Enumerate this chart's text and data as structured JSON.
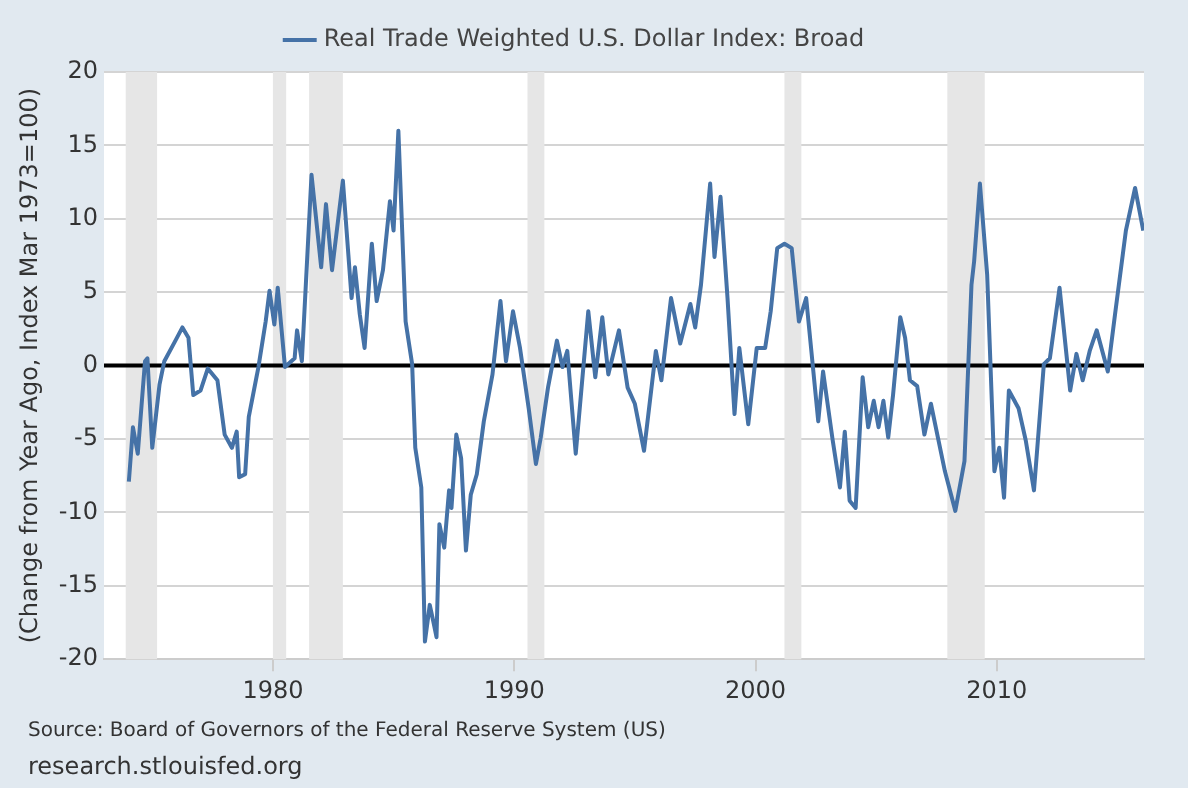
{
  "chart_data": {
    "type": "line",
    "ylabel": "(Change from Year Ago, Index Mar 1973=100)",
    "x": [
      1974.03,
      1974.2,
      1974.4,
      1974.7,
      1974.8,
      1975.0,
      1975.3,
      1975.5,
      1975.96,
      1976.25,
      1976.5,
      1976.7,
      1977.0,
      1977.3,
      1977.7,
      1978.0,
      1978.3,
      1978.5,
      1978.6,
      1978.85,
      1979.0,
      1979.4,
      1979.7,
      1979.86,
      1980.06,
      1980.2,
      1980.5,
      1980.9,
      1981.0,
      1981.2,
      1981.6,
      1982.0,
      1982.2,
      1982.45,
      1982.9,
      1983.26,
      1983.4,
      1983.6,
      1983.8,
      1984.1,
      1984.3,
      1984.56,
      1984.85,
      1985.0,
      1985.2,
      1985.5,
      1985.77,
      1985.9,
      1986.15,
      1986.3,
      1986.5,
      1986.67,
      1986.78,
      1986.9,
      1987.1,
      1987.3,
      1987.4,
      1987.6,
      1987.8,
      1988.0,
      1988.2,
      1988.45,
      1988.74,
      1989.1,
      1989.43,
      1989.66,
      1989.95,
      1990.24,
      1990.6,
      1990.9,
      1991.1,
      1991.4,
      1991.77,
      1992.0,
      1992.2,
      1992.55,
      1993.07,
      1993.36,
      1993.65,
      1993.9,
      1994.34,
      1994.7,
      1995.0,
      1995.38,
      1995.87,
      1996.1,
      1996.5,
      1996.88,
      1997.3,
      1997.5,
      1997.74,
      1998.12,
      1998.3,
      1998.55,
      1998.84,
      1999.13,
      1999.33,
      1999.7,
      2000.05,
      2000.4,
      2000.63,
      2000.9,
      2001.2,
      2001.5,
      2001.8,
      2002.1,
      2002.6,
      2002.8,
      2003.2,
      2003.5,
      2003.7,
      2003.9,
      2004.15,
      2004.44,
      2004.67,
      2004.9,
      2005.1,
      2005.3,
      2005.5,
      2005.7,
      2006.0,
      2006.2,
      2006.4,
      2006.7,
      2007.0,
      2007.27,
      2007.56,
      2007.85,
      2008.28,
      2008.66,
      2008.95,
      2009.06,
      2009.3,
      2009.6,
      2009.9,
      2010.1,
      2010.3,
      2010.5,
      2010.9,
      2011.2,
      2011.54,
      2011.95,
      2012.2,
      2012.6,
      2013.04,
      2013.3,
      2013.56,
      2013.85,
      2014.14,
      2014.6,
      2014.9,
      2015.35,
      2015.73,
      2016.07
    ],
    "series": [
      {
        "name": "Real Trade Weighted U.S. Dollar Index: Broad",
        "color": "#4572a7",
        "values": [
          -7.9,
          -4.2,
          -6.0,
          0.3,
          0.5,
          -5.6,
          -1.3,
          0.3,
          1.7,
          2.6,
          1.9,
          -2.0,
          -1.7,
          -0.2,
          -1.0,
          -4.7,
          -5.6,
          -4.5,
          -7.6,
          -7.4,
          -3.5,
          -0.1,
          3.0,
          5.1,
          2.8,
          5.3,
          -0.1,
          0.5,
          2.4,
          0.3,
          13.0,
          6.7,
          11.0,
          6.5,
          12.6,
          4.6,
          6.7,
          3.5,
          1.2,
          8.3,
          4.4,
          6.5,
          11.2,
          9.2,
          16.0,
          3.0,
          0.1,
          -5.6,
          -8.3,
          -18.8,
          -16.3,
          -17.6,
          -18.5,
          -10.8,
          -12.4,
          -8.5,
          -9.7,
          -4.7,
          -6.3,
          -12.6,
          -8.8,
          -7.4,
          -3.8,
          -0.6,
          4.4,
          0.3,
          3.7,
          1.2,
          -2.9,
          -6.7,
          -4.9,
          -1.5,
          1.7,
          -0.1,
          1.0,
          -6.0,
          3.7,
          -0.8,
          3.3,
          -0.6,
          2.4,
          -1.5,
          -2.6,
          -5.8,
          1.0,
          -1.0,
          4.6,
          1.5,
          4.2,
          2.6,
          5.5,
          12.4,
          7.4,
          11.5,
          4.6,
          -3.3,
          1.2,
          -4.0,
          1.2,
          1.2,
          3.7,
          8.0,
          8.3,
          8.0,
          3.0,
          4.6,
          -3.8,
          -0.4,
          -5.1,
          -8.3,
          -4.5,
          -9.2,
          -9.7,
          -0.8,
          -4.2,
          -2.4,
          -4.2,
          -2.4,
          -4.9,
          -2.0,
          3.3,
          1.9,
          -1.0,
          -1.4,
          -4.7,
          -2.6,
          -4.9,
          -7.2,
          -9.9,
          -6.5,
          5.5,
          7.1,
          12.4,
          6.2,
          -7.2,
          -5.6,
          -9.0,
          -1.7,
          -2.9,
          -5.1,
          -8.5,
          0.1,
          0.5,
          5.3,
          -1.7,
          0.8,
          -1.0,
          1.0,
          2.4,
          -0.4,
          3.5,
          9.2,
          12.1,
          9.2
        ]
      }
    ],
    "xlim": [
      1973.0,
      2016.1
    ],
    "xticks": [
      1980,
      1990,
      2000,
      2010
    ],
    "ylim": [
      -20,
      20
    ],
    "yticks": [
      -20,
      -15,
      -10,
      -5,
      0,
      5,
      10,
      15,
      20
    ],
    "grid": "y",
    "legend": "top",
    "marker": "none",
    "line_style": "solid",
    "ref_lines": [
      {
        "axis": "y",
        "value": 0,
        "color": "#000000"
      }
    ],
    "bands": [
      {
        "axis": "x",
        "from": 1973.9,
        "to": 1975.2,
        "color": "#e6e6e6"
      },
      {
        "axis": "x",
        "from": 1980.0,
        "to": 1980.55,
        "color": "#e6e6e6"
      },
      {
        "axis": "x",
        "from": 1981.5,
        "to": 1982.9,
        "color": "#e6e6e6"
      },
      {
        "axis": "x",
        "from": 1990.55,
        "to": 1991.25,
        "color": "#e6e6e6"
      },
      {
        "axis": "x",
        "from": 2001.2,
        "to": 2001.9,
        "color": "#e6e6e6"
      },
      {
        "axis": "x",
        "from": 2007.95,
        "to": 2009.5,
        "color": "#e6e6e6"
      }
    ],
    "annotations": [
      "Source: Board of Governors of the Federal Reserve System (US)",
      "research.stlouisfed.org"
    ]
  }
}
